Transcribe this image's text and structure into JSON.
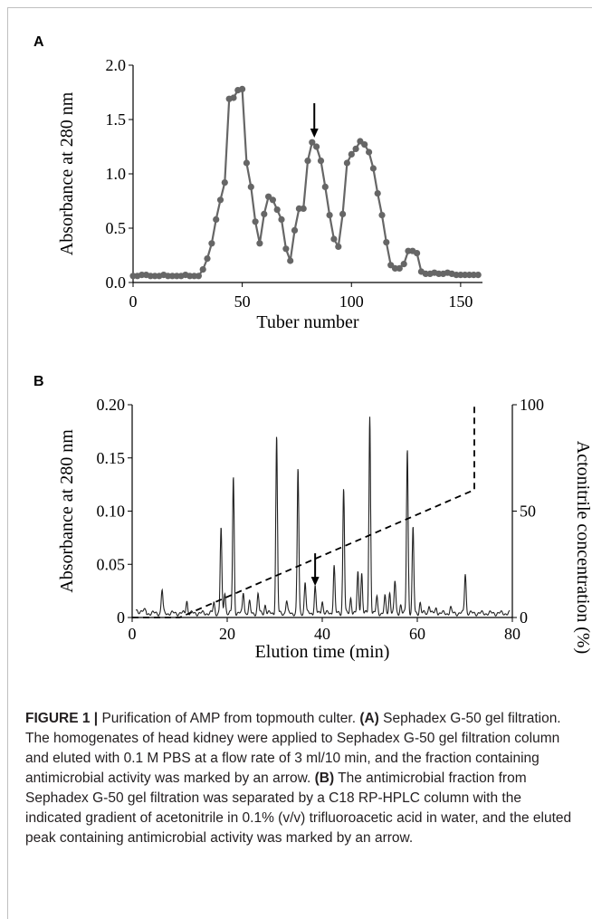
{
  "chart_data": [
    {
      "panel": "A",
      "type": "line",
      "xlabel": "Tuber number",
      "ylabel": "Absorbance at 280 nm",
      "xlim": [
        0,
        160
      ],
      "ylim": [
        0,
        2.0
      ],
      "xticks": [
        "0",
        "50",
        "100",
        "150"
      ],
      "xtick_values": [
        0,
        50,
        100,
        150
      ],
      "yticks": [
        "0.0",
        "0.5",
        "1.0",
        "1.5",
        "2.0"
      ],
      "ytick_values": [
        0,
        0.5,
        1.0,
        1.5,
        2.0
      ],
      "grid": false,
      "markers": true,
      "color": "#666666",
      "series": [
        {
          "x": [
            0,
            2,
            4,
            6,
            8,
            10,
            12,
            14,
            16,
            18,
            20,
            22,
            24,
            26,
            28,
            30,
            32,
            34,
            36,
            38,
            40,
            42,
            44,
            46,
            48,
            50,
            52,
            54,
            56,
            58,
            60,
            62,
            64,
            66,
            68,
            70,
            72,
            74,
            76,
            78,
            80,
            82,
            84,
            86,
            88,
            90,
            92,
            94,
            96,
            98,
            100,
            102,
            104,
            106,
            108,
            110,
            112,
            114,
            116,
            118,
            120,
            122,
            124,
            126,
            128,
            130,
            132,
            134,
            136,
            138,
            140,
            142,
            144,
            146,
            148,
            150,
            152,
            154,
            156,
            158
          ],
          "y": [
            0.06,
            0.06,
            0.07,
            0.07,
            0.06,
            0.06,
            0.06,
            0.07,
            0.06,
            0.06,
            0.06,
            0.06,
            0.07,
            0.06,
            0.06,
            0.06,
            0.12,
            0.22,
            0.36,
            0.58,
            0.76,
            0.92,
            1.69,
            1.7,
            1.77,
            1.78,
            1.1,
            0.88,
            0.56,
            0.36,
            0.63,
            0.79,
            0.76,
            0.67,
            0.58,
            0.31,
            0.2,
            0.48,
            0.68,
            0.68,
            1.12,
            1.29,
            1.25,
            1.12,
            0.88,
            0.62,
            0.4,
            0.33,
            0.63,
            1.1,
            1.18,
            1.23,
            1.3,
            1.27,
            1.2,
            1.05,
            0.82,
            0.62,
            0.37,
            0.16,
            0.13,
            0.13,
            0.17,
            0.29,
            0.29,
            0.27,
            0.1,
            0.08,
            0.08,
            0.09,
            0.08,
            0.08,
            0.09,
            0.08,
            0.07,
            0.07,
            0.07,
            0.07,
            0.07,
            0.07
          ]
        }
      ],
      "annotations": [
        {
          "type": "arrow",
          "x": 83,
          "y": 1.3
        }
      ]
    },
    {
      "panel": "B",
      "type": "line",
      "xlabel": "Elution time (min)",
      "ylabel": "Absorbance at 280 nm",
      "y2label": "Actonitrile concentration (%)",
      "xlim": [
        0,
        80
      ],
      "ylim": [
        0,
        0.2
      ],
      "y2lim": [
        0,
        100
      ],
      "xticks": [
        "0",
        "20",
        "40",
        "60",
        "80"
      ],
      "xtick_values": [
        0,
        20,
        40,
        60,
        80
      ],
      "yticks": [
        "0",
        "0.05",
        "0.10",
        "0.15",
        "0.20"
      ],
      "ytick_values": [
        0,
        0.05,
        0.1,
        0.15,
        0.2
      ],
      "y2ticks": [
        "0",
        "50",
        "100"
      ],
      "y2tick_values": [
        0,
        50,
        100
      ],
      "grid": false,
      "baseline": 0.004,
      "peaks": [
        [
          6.3,
          0.022
        ],
        [
          11.5,
          0.012
        ],
        [
          17.2,
          0.01
        ],
        [
          18.7,
          0.08
        ],
        [
          19.5,
          0.02
        ],
        [
          21.3,
          0.128
        ],
        [
          23.4,
          0.02
        ],
        [
          24.7,
          0.01
        ],
        [
          26.5,
          0.018
        ],
        [
          28.0,
          0.008
        ],
        [
          30.4,
          0.166
        ],
        [
          32.5,
          0.012
        ],
        [
          34.9,
          0.136
        ],
        [
          36.4,
          0.03
        ],
        [
          38.5,
          0.025
        ],
        [
          40.0,
          0.012
        ],
        [
          42.5,
          0.045
        ],
        [
          44.5,
          0.118
        ],
        [
          46.0,
          0.015
        ],
        [
          47.5,
          0.038
        ],
        [
          48.3,
          0.038
        ],
        [
          50.0,
          0.185
        ],
        [
          51.5,
          0.015
        ],
        [
          53.2,
          0.015
        ],
        [
          54.2,
          0.02
        ],
        [
          55.3,
          0.03
        ],
        [
          56.5,
          0.008
        ],
        [
          57.9,
          0.155
        ],
        [
          59.1,
          0.08
        ],
        [
          60.6,
          0.01
        ],
        [
          62.5,
          0.008
        ],
        [
          64.0,
          0.005
        ],
        [
          67.0,
          0.005
        ],
        [
          70.1,
          0.038
        ]
      ],
      "gradient": {
        "x": [
          0,
          10,
          72,
          72
        ],
        "y2": [
          0,
          0,
          60,
          100
        ],
        "style": "dashed"
      },
      "annotations": [
        {
          "type": "arrow",
          "x": 38.5,
          "y": 0.028
        }
      ]
    }
  ],
  "panels": {
    "a_letter": "A",
    "b_letter": "B"
  },
  "caption": {
    "figure_label": "FIGURE 1 |",
    "title": " Purification of AMP from topmouth culter. ",
    "a_label": "(A)",
    "a_text": " Sephadex G-50 gel filtration. The homogenates of head kidney were applied to Sephadex G-50 gel filtration column and eluted with 0.1 M PBS at a flow rate of 3 ml/10 min, and the fraction containing antimicrobial activity was marked by an arrow. ",
    "b_label": "(B)",
    "b_text": " The antimicrobial fraction from Sephadex G-50 gel filtration was separated by a C18 RP-HPLC column with the indicated gradient of acetonitrile in 0.1% (v/v) trifluoroacetic acid in water, and the eluted peak containing antimicrobial activity was marked by an arrow."
  }
}
